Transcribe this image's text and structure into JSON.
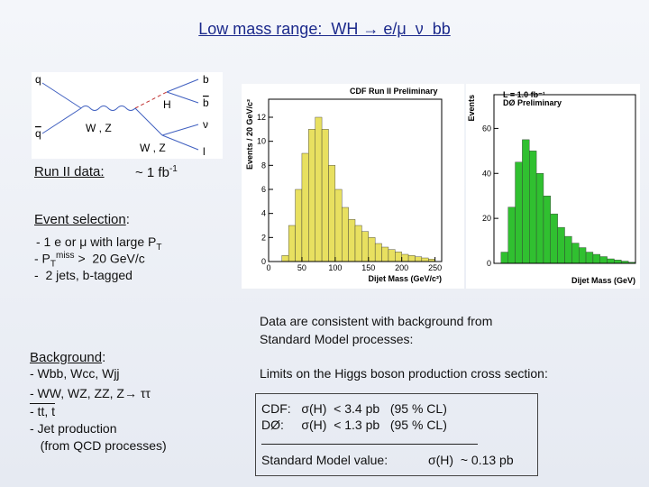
{
  "title": "Low mass range:  WH → e/μ  ν  bb",
  "diagram": {
    "labels": [
      "q",
      "q",
      "W , Z",
      "H",
      "b",
      "b",
      "W , Z",
      "ν",
      "l"
    ]
  },
  "run": {
    "label": "Run II data:",
    "lumi": "~ 1 fb",
    "lumi_sup": "-1"
  },
  "selection": {
    "heading": "Event selection",
    "colon": ":",
    "line1": "- 1 e or μ with large P",
    "line1_sub": "T",
    "line2_a": "- P",
    "line2_sub": "T",
    "line2_sup": "miss",
    "line2_b": " >  20 GeV/c",
    "line3": "-  2 jets, b-tagged"
  },
  "background": {
    "heading": "Background",
    "colon": ":",
    "lines": [
      "- Wbb, Wcc, Wjj",
      "- WW, WZ, ZZ, Z→ ττ",
      "- tt, t",
      "- Jet production",
      "   (from QCD processes)"
    ]
  },
  "notes": {
    "consistent": [
      "Data are consistent with background from",
      "Standard Model processes:"
    ],
    "limits": "Limits on the Higgs boson production cross section:",
    "cdf": "CDF:   σ(H)  < 3.4 pb   (95 % CL)",
    "d0": "DØ:     σ(H)  < 1.3 pb   (95 % CL)",
    "sm_label": "Standard Model value:",
    "sm_value": "σ(H)  ~ 0.13 pb"
  },
  "plots": [
    {
      "type": "histogram",
      "title": "CDF Run II Preliminary",
      "xlabel": "Dijet Mass (GeV/c²)",
      "ylabel": "Events / 20 GeV/c²",
      "color": "#e8e060",
      "bins": [
        20,
        30,
        40,
        50,
        60,
        70,
        80,
        90,
        100,
        110,
        120,
        130,
        140,
        150,
        160,
        170,
        180,
        190,
        200,
        210,
        220,
        230,
        240,
        250
      ],
      "values": [
        0.5,
        3,
        6,
        9,
        11,
        12,
        11,
        8,
        6,
        4.5,
        3.5,
        3,
        2.5,
        2,
        1.5,
        1.2,
        1,
        0.8,
        0.6,
        0.5,
        0.4,
        0.3,
        0.2
      ],
      "xlim": [
        0,
        260
      ],
      "ylim": [
        0,
        13.5
      ],
      "xticks": [
        0,
        50,
        100,
        150,
        200,
        250
      ],
      "yticks": [
        0,
        2,
        4,
        6,
        8,
        10,
        12
      ]
    },
    {
      "type": "histogram",
      "title": "DØ Preliminary",
      "subtitle": "L = 1.0 fb⁻¹",
      "xlabel": "Dijet Mass (GeV)",
      "ylabel": "Events",
      "color": "#30c030",
      "bins": [
        20,
        40,
        60,
        80,
        100,
        120,
        140,
        160,
        180,
        200,
        220,
        240,
        260,
        280,
        300,
        320,
        340,
        360,
        380,
        400
      ],
      "values": [
        5,
        25,
        45,
        55,
        50,
        40,
        30,
        22,
        16,
        12,
        9,
        7,
        5,
        4,
        3,
        2,
        1.5,
        1,
        0.5
      ],
      "xlim": [
        0,
        400
      ],
      "ylim": [
        0,
        75
      ],
      "yticks": [
        0,
        20,
        40,
        60
      ]
    }
  ]
}
